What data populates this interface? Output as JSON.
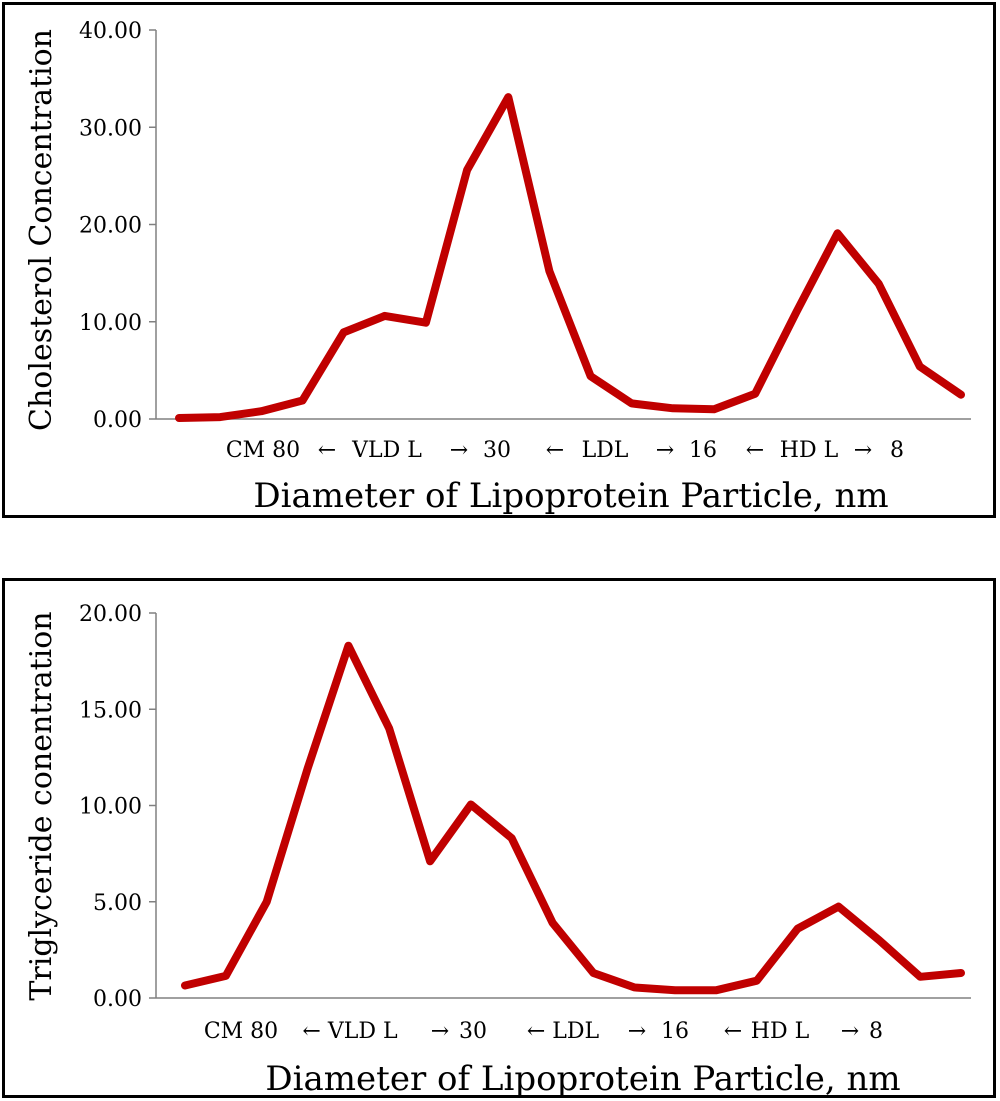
{
  "colors": {
    "series": "#c00000",
    "axis": "#808080",
    "frame": "#000000"
  },
  "chart_data": [
    {
      "type": "line",
      "ylabel": "Cholesterol  Concentration",
      "xlabel": "Diameter of Lipoprotein Particle, nm",
      "ylim": [
        0,
        40
      ],
      "yticks": [
        "0.00",
        "10.00",
        "20.00",
        "30.00",
        "40.00"
      ],
      "xticks": [
        "CM 80",
        "←",
        "VLD L",
        "→",
        "30",
        "←",
        "LDL",
        "→",
        "16",
        "←",
        "HD L",
        "→",
        "8"
      ],
      "grid": false,
      "series": [
        {
          "values": [
            0.1,
            0.2,
            0.8,
            1.9,
            8.9,
            10.6,
            9.9,
            25.6,
            33.1,
            15.2,
            4.4,
            1.6,
            1.1,
            1.0,
            2.6,
            11.0,
            19.1,
            13.9,
            5.4,
            2.5
          ]
        }
      ]
    },
    {
      "type": "line",
      "ylabel": "Triglyceride conentration",
      "xlabel": "Diameter of Lipoprotein Particle, nm",
      "ylim": [
        0,
        20
      ],
      "yticks": [
        "0.00",
        "5.00",
        "10.00",
        "15.00",
        "20.00"
      ],
      "xticks": [
        "CM 80",
        "← VLD L",
        "→",
        "30",
        "← LDL",
        "→",
        "16",
        "←",
        "HD L",
        "→",
        "8"
      ],
      "grid": false,
      "series": [
        {
          "values": [
            0.65,
            1.15,
            5.0,
            11.9,
            18.3,
            14.0,
            7.1,
            10.05,
            8.3,
            3.9,
            1.3,
            0.55,
            0.4,
            0.4,
            0.9,
            3.6,
            4.75,
            3.0,
            1.1,
            1.3
          ]
        }
      ]
    }
  ]
}
